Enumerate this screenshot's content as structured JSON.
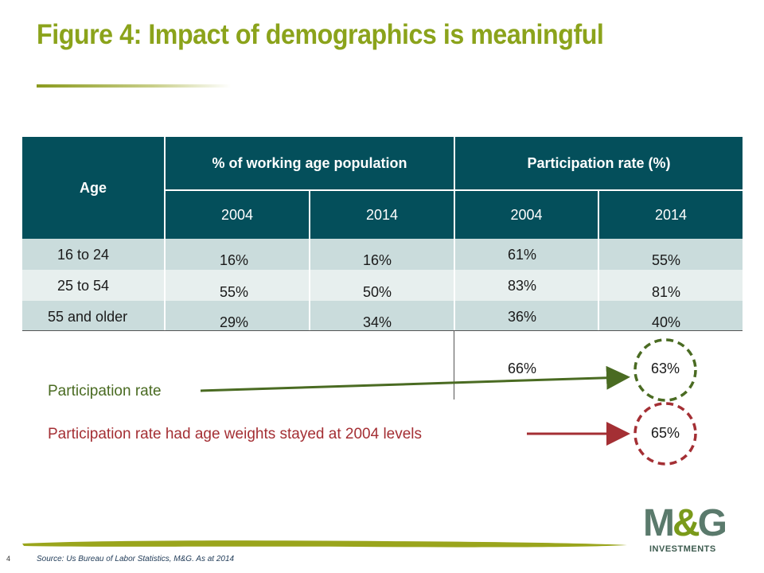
{
  "title": "Figure 4: Impact of demographics is meaningful",
  "table": {
    "age_header": "Age",
    "group1_header": "% of  working age population",
    "group2_header": "Participation rate (%)",
    "years": [
      "2004",
      "2014",
      "2004",
      "2014"
    ],
    "rows": [
      {
        "age": "16 to 24",
        "pop2004": "16%",
        "pop2014": "16%",
        "part2004": "61%",
        "part2014": "55%"
      },
      {
        "age": "25 to 54",
        "pop2004": "55%",
        "pop2014": "50%",
        "part2004": "83%",
        "part2014": "81%"
      },
      {
        "age": "55 and older",
        "pop2004": "29%",
        "pop2014": "34%",
        "part2004": "36%",
        "part2014": "40%"
      }
    ]
  },
  "totals": {
    "part2004": "66%",
    "part2014": "63%",
    "reweighted": "65%"
  },
  "annotations": {
    "participation": "Participation rate",
    "reweighted": "Participation rate had age weights stayed at 2004 levels"
  },
  "footer": {
    "page_number": "4",
    "source": "Source: Us Bureau of Labor Statistics, M&G. As at 2014",
    "logo_text": "M&G",
    "logo_sub": "INVESTMENTS"
  },
  "colors": {
    "title": "#8ba31b",
    "header_bg": "#044f5b",
    "row_shade": "#cadcdc",
    "row_light": "#e7efee",
    "green_annotation": "#4a6b22",
    "red_annotation": "#a42f34"
  }
}
